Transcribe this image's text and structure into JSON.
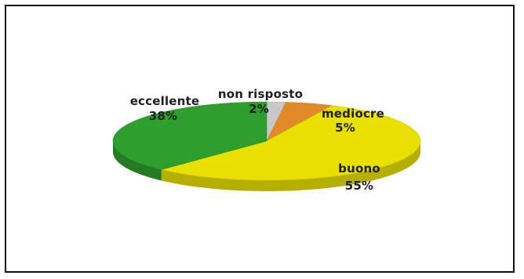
{
  "chart_data": {
    "type": "pie",
    "title": "",
    "labels": [
      "non risposto",
      "mediocre",
      "buono",
      "eccellente"
    ],
    "values": [
      2,
      5,
      55,
      38
    ],
    "value_labels": [
      "2%",
      "5%",
      "55%",
      "38%"
    ],
    "colors": [
      "#c8c8c8",
      "#e08a2a",
      "#e8e000",
      "#2e9e2e"
    ],
    "legend": "none",
    "three_d": true
  }
}
